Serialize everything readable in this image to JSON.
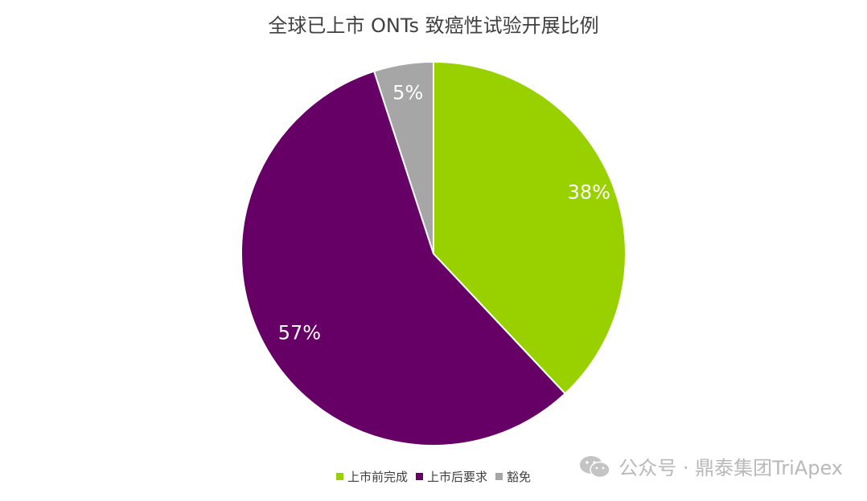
{
  "chart_data": {
    "type": "pie",
    "title": "全球已上市 ONTs 致癌性试验开展比例",
    "categories": [
      "上市前完成",
      "上市后要求",
      "豁免"
    ],
    "values": [
      38,
      57,
      5
    ],
    "labels": [
      "38%",
      "57%",
      "5%"
    ],
    "colors": [
      "#99d100",
      "#660066",
      "#a6a6a6"
    ],
    "start_angle_deg": 0,
    "direction": "clockwise",
    "legend": "bottom"
  },
  "watermark": {
    "text": "公众号 · 鼎泰集团TriApex",
    "icon": "wechat-icon"
  }
}
